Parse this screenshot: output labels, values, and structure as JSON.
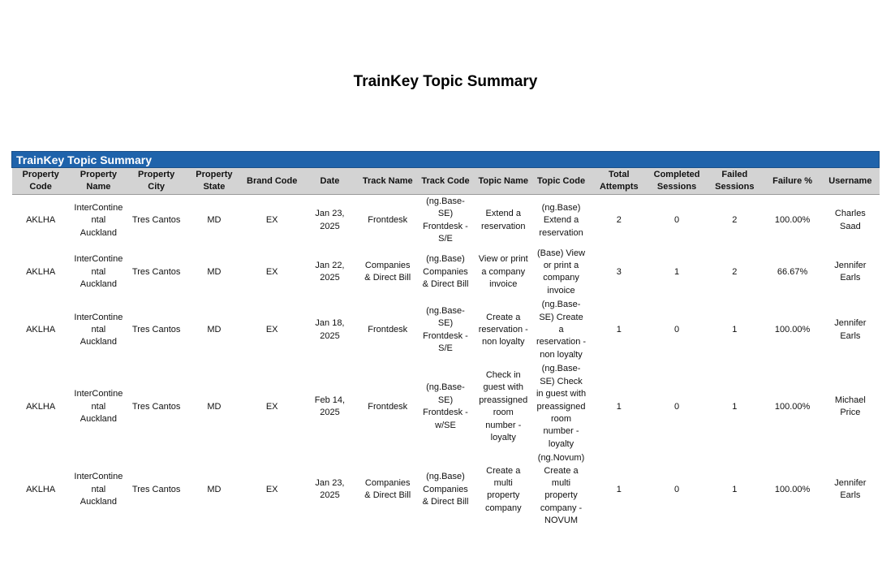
{
  "title": "TrainKey Topic Summary",
  "table": {
    "title": "TrainKey Topic Summary",
    "headers": [
      "Property Code",
      "Property Name",
      "Property City",
      "Property State",
      "Brand Code",
      "Date",
      "Track Name",
      "Track Code",
      "Topic Name",
      "Topic Code",
      "Total Attempts",
      "Completed Sessions",
      "Failed Sessions",
      "Failure %",
      "Username"
    ],
    "rows": [
      [
        "AKLHA",
        "InterContinental Auckland",
        "Tres Cantos",
        "MD",
        "EX",
        "Jan 23, 2025",
        "Frontdesk",
        "(ng.Base-SE) Frontdesk - S/E",
        "Extend a reservation",
        "(ng.Base) Extend a reservation",
        "2",
        "0",
        "2",
        "100.00%",
        "Charles Saad"
      ],
      [
        "AKLHA",
        "InterContinental Auckland",
        "Tres Cantos",
        "MD",
        "EX",
        "Jan 22, 2025",
        "Companies & Direct Bill",
        "(ng.Base) Companies & Direct Bill",
        "View or print a company invoice",
        "(Base) View or print a company invoice",
        "3",
        "1",
        "2",
        "66.67%",
        "Jennifer Earls"
      ],
      [
        "AKLHA",
        "InterContinental Auckland",
        "Tres Cantos",
        "MD",
        "EX",
        "Jan 18, 2025",
        "Frontdesk",
        "(ng.Base-SE) Frontdesk - S/E",
        "Create a reservation - non loyalty",
        "(ng.Base-SE) Create a reservation - non loyalty",
        "1",
        "0",
        "1",
        "100.00%",
        "Jennifer Earls"
      ],
      [
        "AKLHA",
        "InterContinental Auckland",
        "Tres Cantos",
        "MD",
        "EX",
        "Feb 14, 2025",
        "Frontdesk",
        "(ng.Base-SE) Frontdesk - w/SE",
        "Check in guest with preassigned room number - loyalty",
        "(ng.Base-SE) Check in guest with preassigned room number - loyalty",
        "1",
        "0",
        "1",
        "100.00%",
        "Michael Price"
      ],
      [
        "AKLHA",
        "InterContinental Auckland",
        "Tres Cantos",
        "MD",
        "EX",
        "Jan 23, 2025",
        "Companies & Direct Bill",
        "(ng.Base) Companies & Direct Bill",
        "Create a multi property company",
        "(ng.Novum) Create a multi property company - NOVUM",
        "1",
        "0",
        "1",
        "100.00%",
        "Jennifer Earls"
      ]
    ]
  }
}
